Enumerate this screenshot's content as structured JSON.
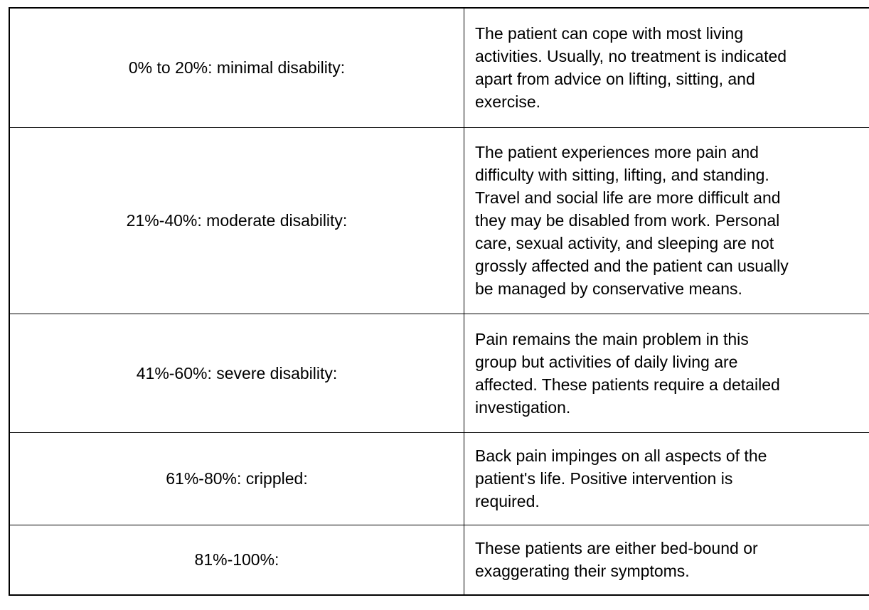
{
  "table": {
    "rows": [
      {
        "range": "0% to 20%: minimal disability:",
        "description": "The patient can cope with most living\nactivities. Usually, no treatment is indicated\napart from advice on lifting, sitting, and\nexercise."
      },
      {
        "range": "21%-40%: moderate disability:",
        "description": "The patient experiences more pain and\ndifficulty with sitting, lifting, and standing.\nTravel and social life are more difficult and\nthey may be disabled from work. Personal\ncare, sexual activity, and sleeping are not\ngrossly affected and the patient can usually\nbe managed by conservative means."
      },
      {
        "range": "41%-60%: severe disability:",
        "description": "Pain remains the main problem in this\ngroup but activities of daily living are\naffected. These patients require a detailed\ninvestigation."
      },
      {
        "range": "61%-80%: crippled:",
        "description": "Back pain impinges on all aspects of the\npatient's life. Positive intervention is\nrequired."
      },
      {
        "range": "81%-100%:",
        "description": "These patients are either bed-bound or\nexaggerating their symptoms."
      }
    ]
  }
}
